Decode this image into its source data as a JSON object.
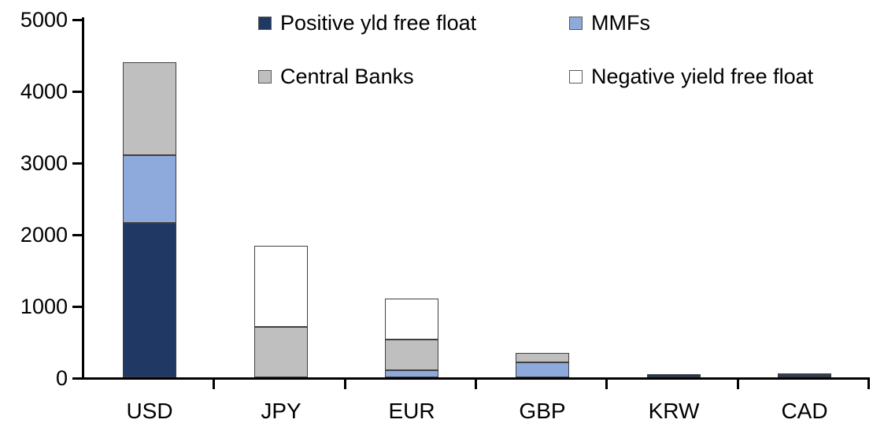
{
  "chart_data": {
    "type": "bar",
    "stacked": true,
    "title": "",
    "xlabel": "",
    "ylabel": "",
    "categories": [
      "USD",
      "JPY",
      "EUR",
      "GBP",
      "KRW",
      "CAD"
    ],
    "series": [
      {
        "name": "Positive yld free float",
        "color": "#1F3864",
        "values": [
          2150,
          0,
          0,
          0,
          45,
          35
        ]
      },
      {
        "name": "MMFs",
        "color": "#8EA9DB",
        "values": [
          950,
          0,
          100,
          210,
          0,
          0
        ]
      },
      {
        "name": "Central Banks",
        "color": "#BFBFBF",
        "values": [
          1300,
          700,
          430,
          130,
          0,
          25
        ]
      },
      {
        "name": "Negative yield free float",
        "color": "#FFFFFF",
        "values": [
          0,
          1140,
          570,
          0,
          0,
          0
        ]
      }
    ],
    "ylim": [
      0,
      5000
    ],
    "yticks": [
      0,
      1000,
      2000,
      3000,
      4000,
      5000
    ],
    "grid": false,
    "legend_position": "top",
    "axis_color": "#000000",
    "segment_border_color": "#404040"
  }
}
